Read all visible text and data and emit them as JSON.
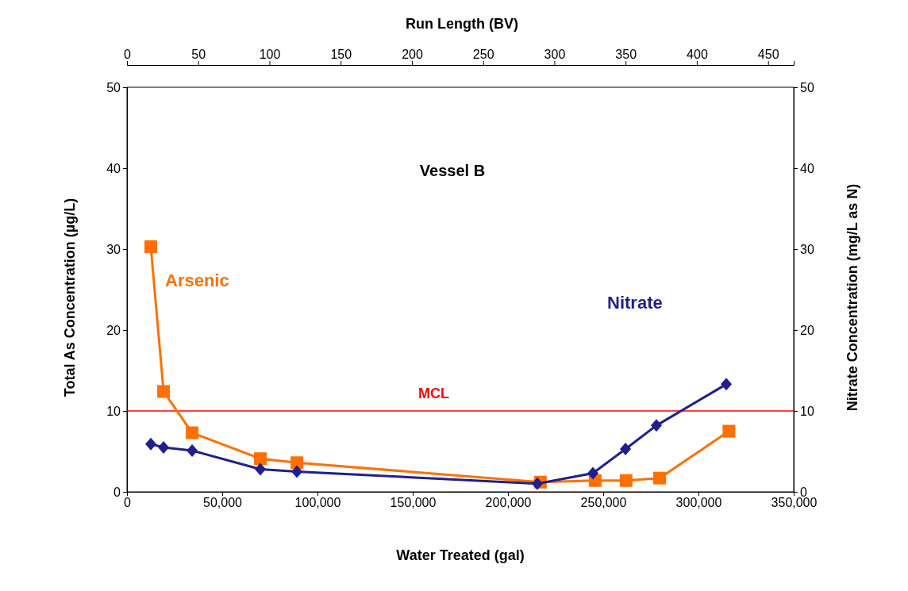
{
  "chart_data": {
    "type": "line",
    "title": "Vessel B",
    "xlabel": "Water Treated (gal)",
    "ylabel": "Total As Concentration (µg/L)",
    "y2label": "Nitrate Concentration (mg/L as N)",
    "x2label": "Run Length (BV)",
    "xlim": [
      0,
      350000
    ],
    "xticks": [
      {
        "value": 0,
        "label": "0"
      },
      {
        "value": 50000,
        "label": "50,000"
      },
      {
        "value": 100000,
        "label": "100,000"
      },
      {
        "value": 150000,
        "label": "150,000"
      },
      {
        "value": 200000,
        "label": "200,000"
      },
      {
        "value": 250000,
        "label": "250,000"
      },
      {
        "value": 300000,
        "label": "300,000"
      },
      {
        "value": 350000,
        "label": "350,000"
      }
    ],
    "x2lim": [
      0,
      468
    ],
    "x2ticks": [
      0,
      50,
      100,
      150,
      200,
      250,
      300,
      350,
      400,
      450
    ],
    "ylim": [
      0,
      50
    ],
    "yticks": [
      0,
      10,
      20,
      30,
      40,
      50
    ],
    "y2lim": [
      0,
      50
    ],
    "y2ticks": [
      0,
      10,
      20,
      30,
      40,
      50
    ],
    "grid": false,
    "series": [
      {
        "name": "Arsenic",
        "color": "#ff7000",
        "marker": "square",
        "x": [
          12500,
          19200,
          34200,
          70000,
          89200,
          217000,
          245800,
          262000,
          279600,
          316000
        ],
        "values": [
          30.3,
          12.4,
          7.3,
          4.1,
          3.6,
          1.2,
          1.4,
          1.4,
          1.7,
          7.5
        ]
      },
      {
        "name": "Nitrate",
        "color": "#1f1f8f",
        "marker": "diamond",
        "axis": "y2",
        "x": [
          12500,
          19200,
          34200,
          70000,
          89200,
          215400,
          244600,
          261700,
          277900,
          314600
        ],
        "values": [
          5.9,
          5.5,
          5.1,
          2.8,
          2.5,
          1.0,
          2.3,
          5.3,
          8.2,
          13.3
        ]
      }
    ],
    "ref_lines": [
      {
        "axis": "y",
        "value": 10,
        "label": "MCL",
        "color": "#ff0000"
      }
    ]
  }
}
